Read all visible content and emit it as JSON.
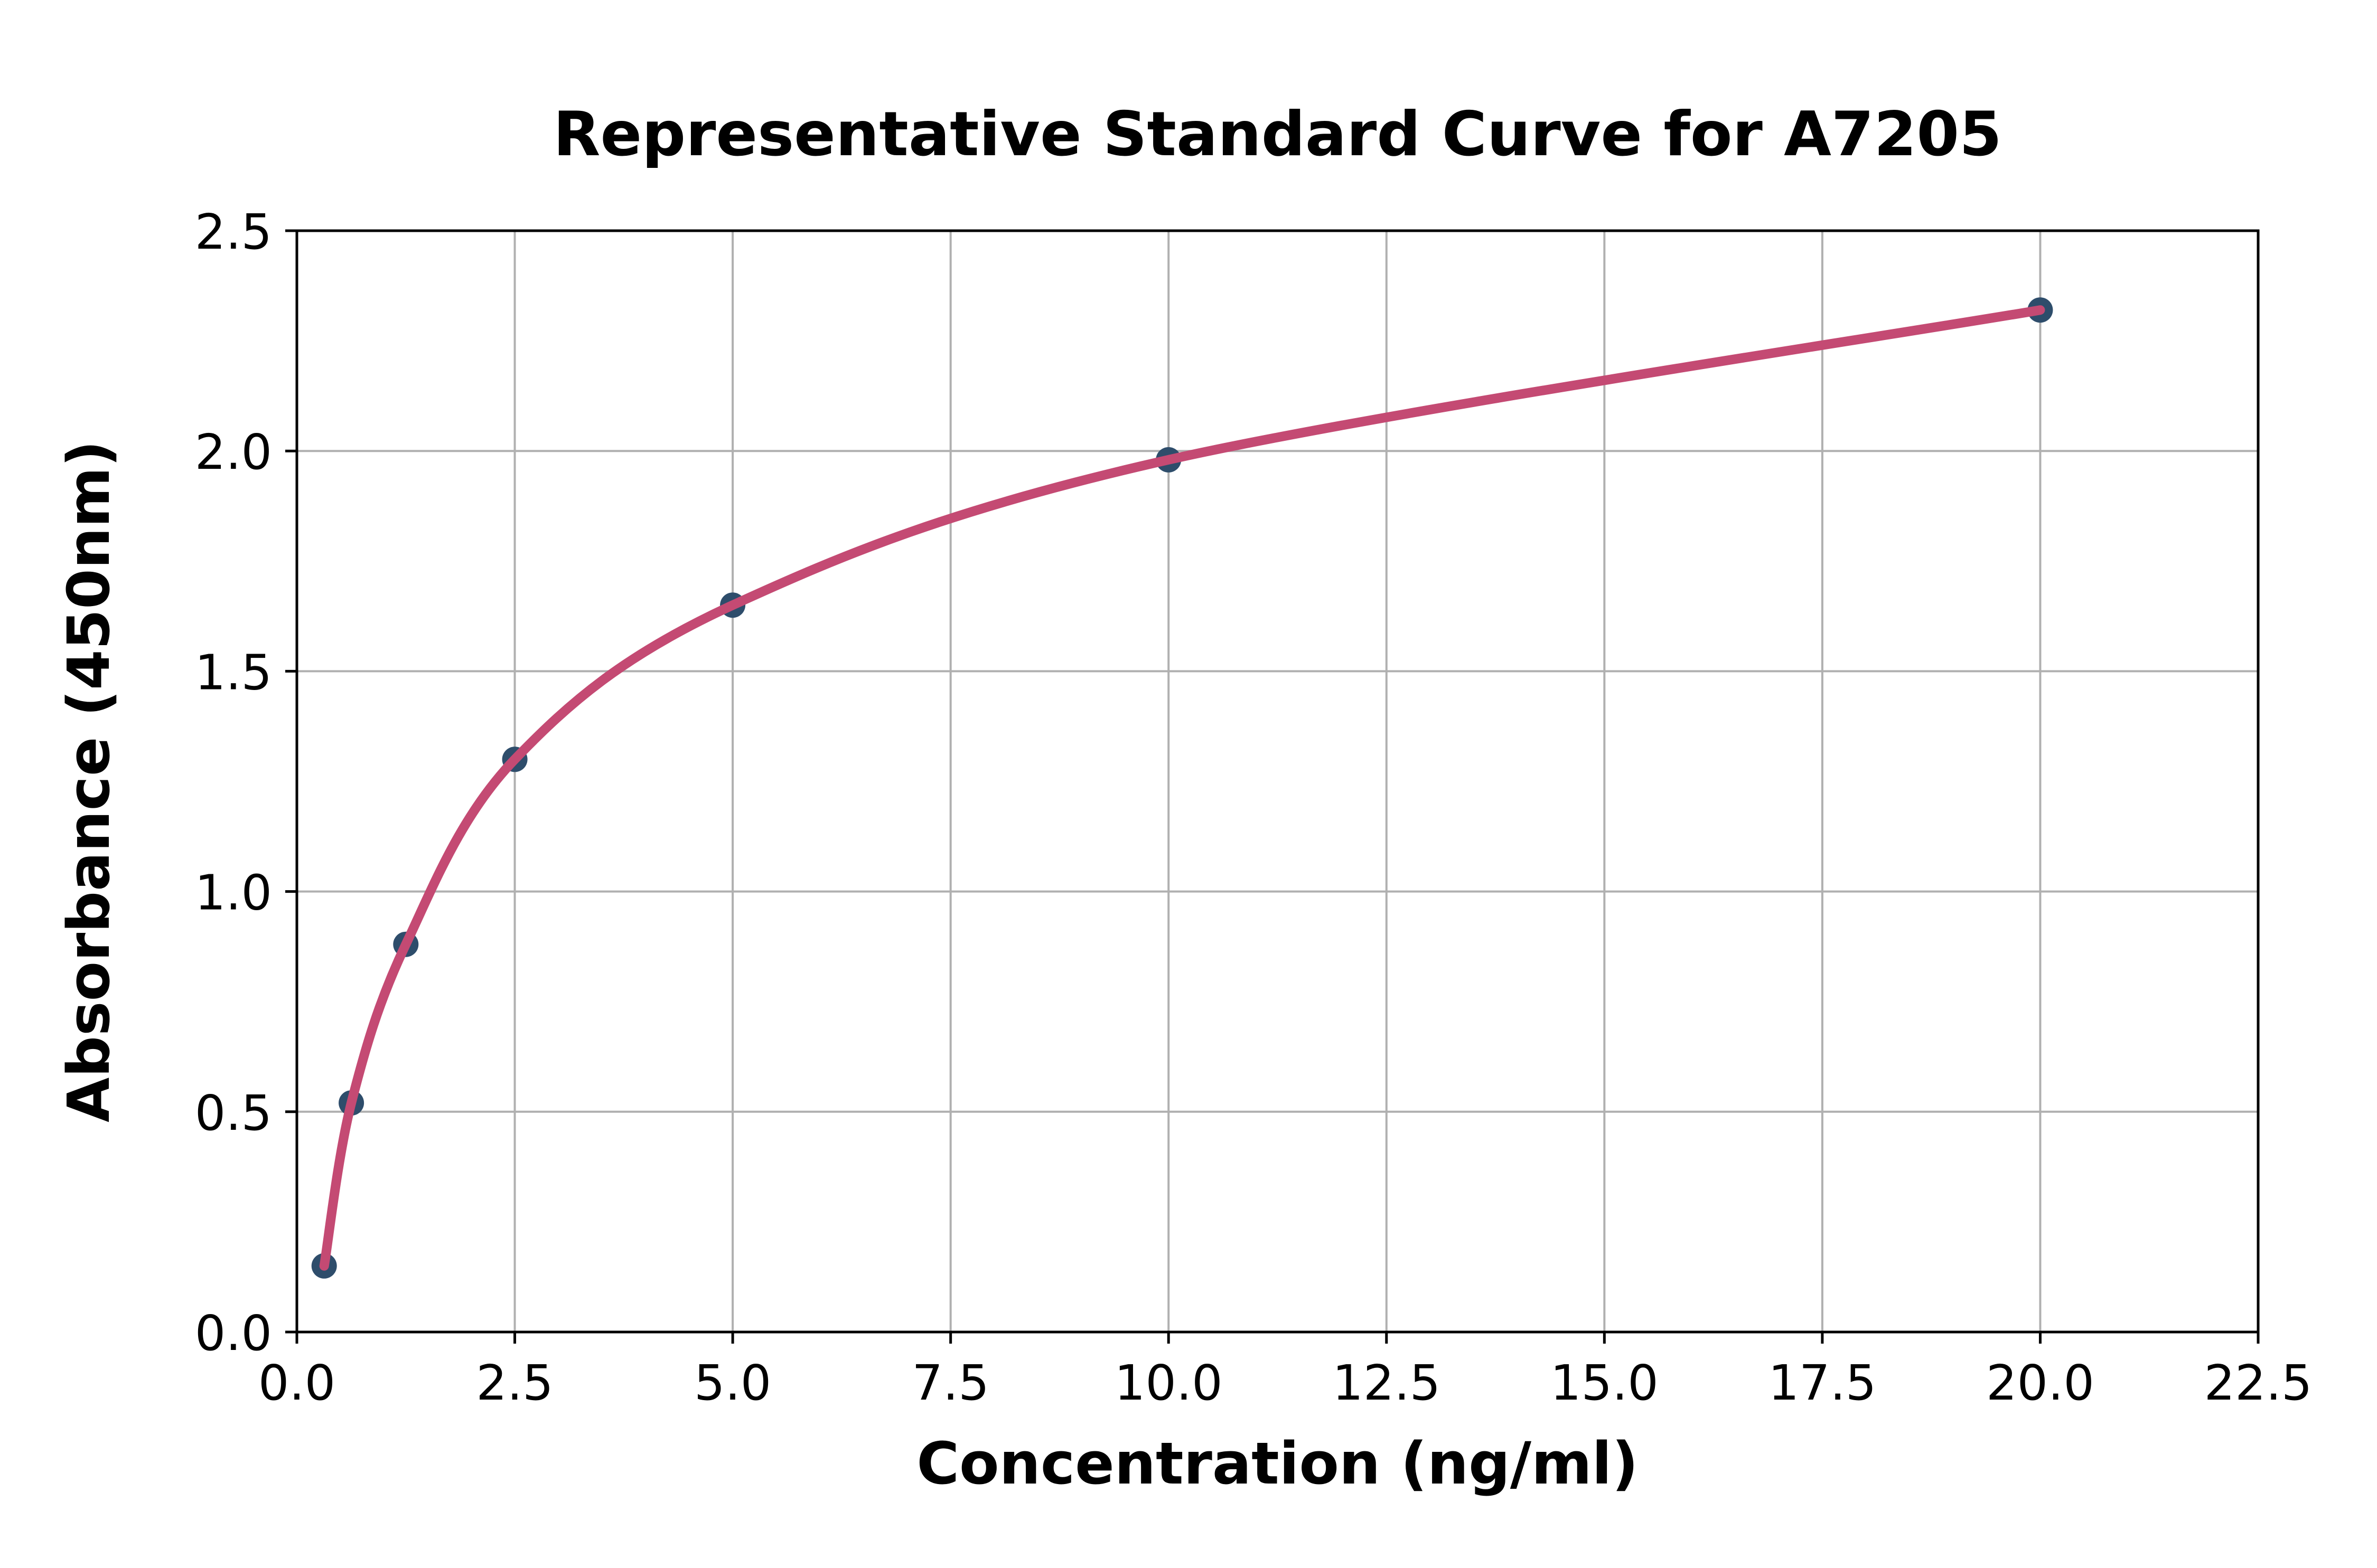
{
  "chart_data": {
    "type": "scatter",
    "title": "Representative Standard Curve for A7205",
    "xlabel": "Concentration (ng/ml)",
    "ylabel": "Absorbance (450nm)",
    "xlim": [
      0,
      22.5
    ],
    "ylim": [
      0,
      2.5
    ],
    "grid": true,
    "legend": "none",
    "x_ticks": [
      {
        "value": 0,
        "label": "0.0"
      },
      {
        "value": 2.5,
        "label": "2.5"
      },
      {
        "value": 5,
        "label": "5.0"
      },
      {
        "value": 7.5,
        "label": "7.5"
      },
      {
        "value": 10,
        "label": "10.0"
      },
      {
        "value": 12.5,
        "label": "12.5"
      },
      {
        "value": 15,
        "label": "15.0"
      },
      {
        "value": 17.5,
        "label": "17.5"
      },
      {
        "value": 20,
        "label": "20.0"
      },
      {
        "value": 22.5,
        "label": "22.5"
      }
    ],
    "y_ticks": [
      {
        "value": 0,
        "label": "0.0"
      },
      {
        "value": 0.5,
        "label": "0.5"
      },
      {
        "value": 1,
        "label": "1.0"
      },
      {
        "value": 1.5,
        "label": "1.5"
      },
      {
        "value": 2,
        "label": "2.0"
      },
      {
        "value": 2.5,
        "label": "2.5"
      }
    ],
    "points": [
      {
        "x": 0.313,
        "y": 0.15
      },
      {
        "x": 0.625,
        "y": 0.52
      },
      {
        "x": 1.25,
        "y": 0.88
      },
      {
        "x": 2.5,
        "y": 1.3
      },
      {
        "x": 5,
        "y": 1.65
      },
      {
        "x": 10,
        "y": 1.98
      },
      {
        "x": 20,
        "y": 2.32
      }
    ],
    "curve": "smooth fit through points",
    "colors": {
      "curve": "#c44a73",
      "marker": "#2e4d6b",
      "grid": "#b0b0b0",
      "axis": "#000000",
      "text": "#000000",
      "background": "#ffffff"
    }
  }
}
